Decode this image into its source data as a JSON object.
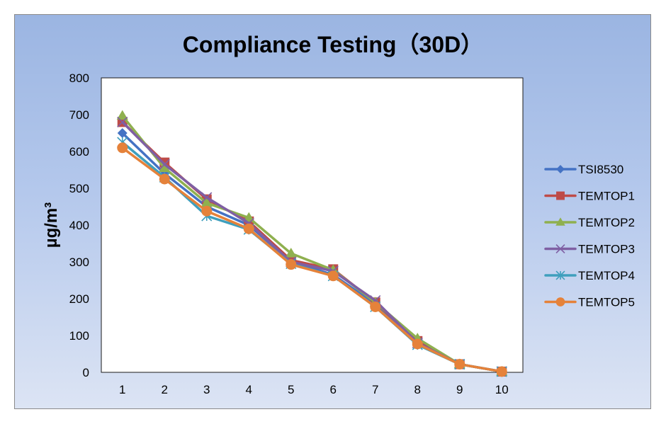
{
  "chart_data": {
    "type": "line",
    "title": "Compliance Testing（30D）",
    "xlabel": "",
    "ylabel": "µg/m³",
    "ylim": [
      0,
      800
    ],
    "yticks": [
      "0",
      "100",
      "200",
      "300",
      "400",
      "500",
      "600",
      "700",
      "800"
    ],
    "yticks_values": [
      0,
      100,
      200,
      300,
      400,
      500,
      600,
      700,
      800
    ],
    "categories": [
      "1",
      "2",
      "3",
      "4",
      "5",
      "6",
      "7",
      "8",
      "9",
      "10"
    ],
    "grid": false,
    "legend_position": "right",
    "series": [
      {
        "name": "TSI8530",
        "color": "#4472c4",
        "marker": "diamond",
        "values": [
          650,
          540,
          450,
          400,
          300,
          265,
          185,
          78,
          22,
          2
        ]
      },
      {
        "name": "TEMTOP1",
        "color": "#be4b48",
        "marker": "square",
        "values": [
          680,
          570,
          470,
          410,
          305,
          280,
          190,
          85,
          22,
          2
        ]
      },
      {
        "name": "TEMTOP2",
        "color": "#8fb04f",
        "marker": "triangle",
        "values": [
          697,
          555,
          460,
          420,
          323,
          278,
          190,
          92,
          22,
          2
        ]
      },
      {
        "name": "TEMTOP3",
        "color": "#7f5fa3",
        "marker": "x",
        "values": [
          680,
          565,
          475,
          405,
          300,
          275,
          195,
          80,
          22,
          2
        ]
      },
      {
        "name": "TEMTOP4",
        "color": "#3f9fbd",
        "marker": "star",
        "values": [
          625,
          530,
          425,
          388,
          295,
          262,
          178,
          75,
          22,
          2
        ]
      },
      {
        "name": "TEMTOP5",
        "color": "#e5823a",
        "marker": "circle",
        "values": [
          610,
          525,
          438,
          390,
          293,
          262,
          178,
          77,
          22,
          2
        ]
      }
    ]
  }
}
